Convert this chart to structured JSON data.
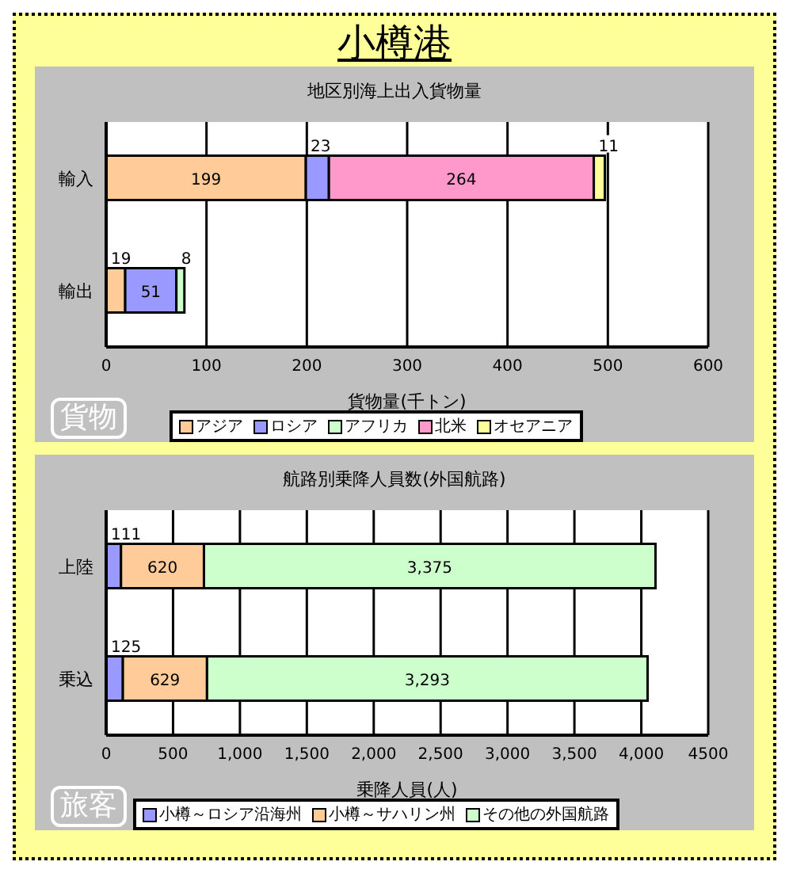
{
  "chart_data": [
    {
      "type": "bar",
      "orientation": "horizontal",
      "stacked": true,
      "title": "小樽港",
      "subtitle": "地区別海上出入貨物量",
      "xlabel": "貨物量(千トン)",
      "categories": [
        "輸入",
        "輸出"
      ],
      "series": [
        {
          "name": "アジア",
          "color": "#ffcc99",
          "values": [
            199,
            19
          ]
        },
        {
          "name": "ロシア",
          "color": "#9999ff",
          "values": [
            23,
            51
          ]
        },
        {
          "name": "アフリカ",
          "color": "#ccffcc",
          "values": [
            null,
            8
          ]
        },
        {
          "name": "北米",
          "color": "#ff99cc",
          "values": [
            264,
            null
          ]
        },
        {
          "name": "オセアニア",
          "color": "#ffff99",
          "values": [
            11,
            null
          ]
        }
      ],
      "xlim": [
        0,
        600
      ],
      "xticks": [
        0,
        100,
        200,
        300,
        400,
        500,
        600
      ],
      "grid": "x",
      "legend": "bottom",
      "data_labels": true,
      "annotations": [
        "貨物"
      ]
    },
    {
      "type": "bar",
      "orientation": "horizontal",
      "stacked": true,
      "title": "航路別乗降人員数(外国航路)",
      "xlabel": "乗降人員(人)",
      "categories": [
        "上陸",
        "乗込"
      ],
      "series": [
        {
          "name": "小樽～ロシア沿海州",
          "color": "#9999ff",
          "values": [
            111,
            125
          ],
          "value_labels": [
            "111",
            "125"
          ]
        },
        {
          "name": "小樽～サハリン州",
          "color": "#ffcc99",
          "values": [
            620,
            629
          ],
          "value_labels": [
            "620",
            "629"
          ]
        },
        {
          "name": "その他の外国航路",
          "color": "#ccffcc",
          "values": [
            3375,
            3293
          ],
          "value_labels": [
            "3,375",
            "3,293"
          ]
        }
      ],
      "xlim": [
        0,
        4500
      ],
      "xticks": [
        0,
        500,
        {
          "value": 1000,
          "label": "1,000"
        },
        {
          "value": 1500,
          "label": "1,500"
        },
        {
          "value": 2000,
          "label": "2,000"
        },
        {
          "value": 2500,
          "label": "2,500"
        },
        {
          "value": 3000,
          "label": "3,000"
        },
        {
          "value": 3500,
          "label": "3,500"
        },
        {
          "value": 4000,
          "label": "4,000"
        },
        4500
      ],
      "grid": "x",
      "legend": "bottom",
      "annotations": [
        "旅客"
      ]
    }
  ]
}
